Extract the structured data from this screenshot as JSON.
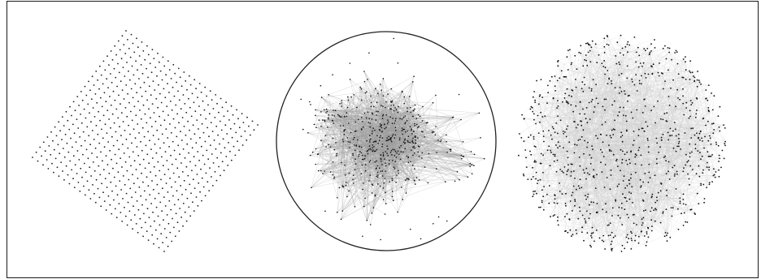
{
  "figure": {
    "panels": [
      {
        "name": "grid-layout",
        "description_kind": "rotated square lattice of nodes",
        "grid_size": 26,
        "node_color": "#222222",
        "edge_color": "#bbbbbb"
      },
      {
        "name": "circular-boundary-layout",
        "description_kind": "dense star-shaped cluster inside circle",
        "node_color": "#111111",
        "edge_color": "#9a9a9a"
      },
      {
        "name": "force-directed-cloud",
        "description_kind": "roughly circular cloud of nodes",
        "node_color": "#111111",
        "edge_color": "#c8c8c8"
      }
    ]
  }
}
